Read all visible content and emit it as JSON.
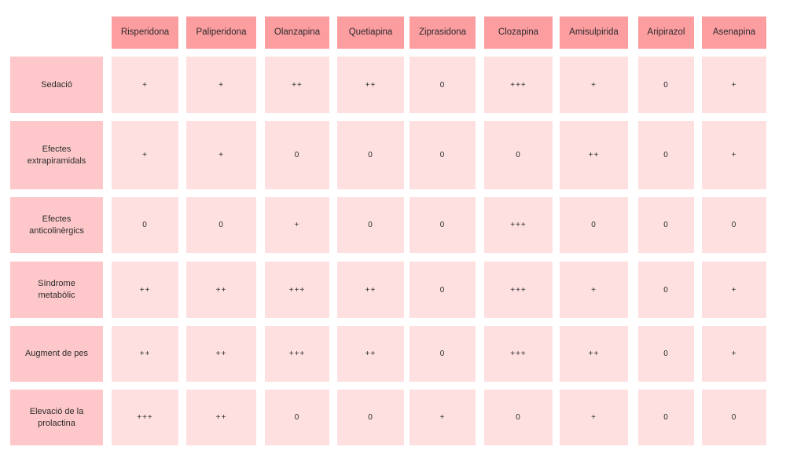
{
  "columns": [
    "Risperidona",
    "Paliperidona",
    "Olanzapina",
    "Quetiapina",
    "Ziprasidona",
    "Clozapina",
    "Amisulpirida",
    "Aripirazol",
    "Asenapina"
  ],
  "rows": [
    {
      "label": "Sedació",
      "values": [
        "+",
        "+",
        "++",
        "++",
        "0",
        "+++",
        "+",
        "0",
        "+"
      ]
    },
    {
      "label": "Efectes\nextrapiramidals",
      "values": [
        "+",
        "+",
        "0",
        "0",
        "0",
        "0",
        "++",
        "0",
        "+"
      ]
    },
    {
      "label": "Efectes\nanticolinèrgics",
      "values": [
        "0",
        "0",
        "+",
        "0",
        "0",
        "+++",
        "0",
        "0",
        "0"
      ]
    },
    {
      "label": "Síndrome\nmetabòlic",
      "values": [
        "++",
        "++",
        "+++",
        "++",
        "0",
        "+++",
        "+",
        "0",
        "+"
      ]
    },
    {
      "label": "Augment de pes",
      "values": [
        "++",
        "++",
        "+++",
        "++",
        "0",
        "+++",
        "++",
        "0",
        "+"
      ]
    },
    {
      "label": "Elevació de la\nprolactina",
      "values": [
        "+++",
        "++",
        "0",
        "0",
        "+",
        "0",
        "+",
        "0",
        "0"
      ]
    }
  ]
}
